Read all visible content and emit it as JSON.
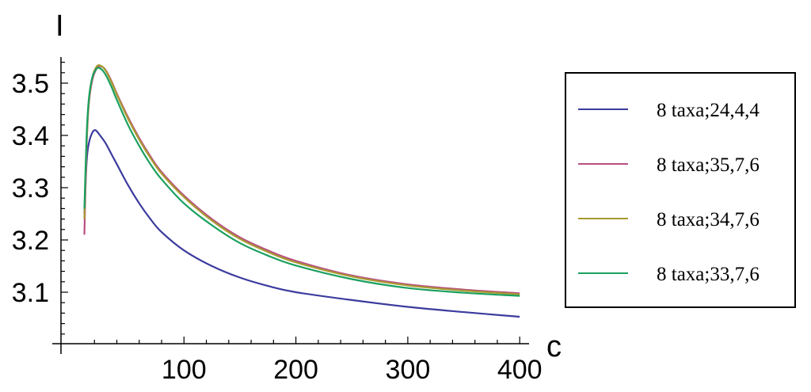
{
  "chart_data": {
    "type": "line",
    "xlabel": "c",
    "ylabel": "I",
    "xlim": [
      0,
      400
    ],
    "ylim": [
      3.0,
      3.55
    ],
    "xticks": [
      100,
      200,
      300,
      400
    ],
    "yticks": [
      3.1,
      3.2,
      3.3,
      3.4,
      3.5
    ],
    "xtick_labels": [
      "100",
      "200",
      "300",
      "400"
    ],
    "ytick_labels": [
      "3.1",
      "3.2",
      "3.3",
      "3.4",
      "3.5"
    ],
    "grid": false,
    "legend_position": "right",
    "series": [
      {
        "name": "8  taxa;24,4,4",
        "color": "#3b3b9e",
        "points": [
          [
            11,
            3.25
          ],
          [
            13,
            3.35
          ],
          [
            15,
            3.385
          ],
          [
            18,
            3.405
          ],
          [
            21,
            3.41
          ],
          [
            25,
            3.4
          ],
          [
            30,
            3.385
          ],
          [
            35,
            3.365
          ],
          [
            40,
            3.345
          ],
          [
            50,
            3.305
          ],
          [
            60,
            3.27
          ],
          [
            70,
            3.24
          ],
          [
            80,
            3.215
          ],
          [
            100,
            3.18
          ],
          [
            125,
            3.15
          ],
          [
            150,
            3.128
          ],
          [
            175,
            3.112
          ],
          [
            200,
            3.1
          ],
          [
            250,
            3.085
          ],
          [
            300,
            3.072
          ],
          [
            350,
            3.062
          ],
          [
            400,
            3.053
          ]
        ]
      },
      {
        "name": "8  taxa;35,7,6",
        "color": "#b85080",
        "points": [
          [
            11,
            3.21
          ],
          [
            13,
            3.38
          ],
          [
            15,
            3.46
          ],
          [
            18,
            3.505
          ],
          [
            22,
            3.528
          ],
          [
            26,
            3.532
          ],
          [
            30,
            3.525
          ],
          [
            35,
            3.505
          ],
          [
            40,
            3.48
          ],
          [
            50,
            3.435
          ],
          [
            60,
            3.395
          ],
          [
            70,
            3.36
          ],
          [
            80,
            3.33
          ],
          [
            100,
            3.285
          ],
          [
            125,
            3.24
          ],
          [
            150,
            3.205
          ],
          [
            175,
            3.18
          ],
          [
            200,
            3.16
          ],
          [
            250,
            3.132
          ],
          [
            300,
            3.115
          ],
          [
            350,
            3.105
          ],
          [
            400,
            3.098
          ]
        ]
      },
      {
        "name": "8  taxa;34,7,6",
        "color": "#a89a30",
        "points": [
          [
            11,
            3.24
          ],
          [
            13,
            3.39
          ],
          [
            15,
            3.465
          ],
          [
            18,
            3.51
          ],
          [
            22,
            3.532
          ],
          [
            26,
            3.533
          ],
          [
            30,
            3.524
          ],
          [
            35,
            3.503
          ],
          [
            40,
            3.478
          ],
          [
            50,
            3.432
          ],
          [
            60,
            3.392
          ],
          [
            70,
            3.357
          ],
          [
            80,
            3.327
          ],
          [
            100,
            3.282
          ],
          [
            125,
            3.237
          ],
          [
            150,
            3.202
          ],
          [
            175,
            3.177
          ],
          [
            200,
            3.157
          ],
          [
            250,
            3.13
          ],
          [
            300,
            3.113
          ],
          [
            350,
            3.103
          ],
          [
            400,
            3.096
          ]
        ]
      },
      {
        "name": "8  taxa;33,7,6",
        "color": "#1aa060",
        "points": [
          [
            11,
            3.26
          ],
          [
            13,
            3.4
          ],
          [
            15,
            3.47
          ],
          [
            18,
            3.51
          ],
          [
            22,
            3.528
          ],
          [
            26,
            3.527
          ],
          [
            30,
            3.516
          ],
          [
            35,
            3.494
          ],
          [
            40,
            3.468
          ],
          [
            50,
            3.42
          ],
          [
            60,
            3.38
          ],
          [
            70,
            3.345
          ],
          [
            80,
            3.316
          ],
          [
            100,
            3.27
          ],
          [
            125,
            3.228
          ],
          [
            150,
            3.194
          ],
          [
            175,
            3.17
          ],
          [
            200,
            3.151
          ],
          [
            250,
            3.125
          ],
          [
            300,
            3.108
          ],
          [
            350,
            3.099
          ],
          [
            400,
            3.093
          ]
        ]
      }
    ]
  }
}
